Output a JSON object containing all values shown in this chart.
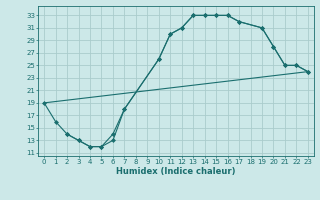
{
  "xlabel": "Humidex (Indice chaleur)",
  "bg_color": "#cce8e8",
  "grid_color": "#aacccc",
  "line_color": "#1a6e6e",
  "xlim": [
    -0.5,
    23.5
  ],
  "ylim": [
    10.5,
    34.5
  ],
  "xticks": [
    0,
    1,
    2,
    3,
    4,
    5,
    6,
    7,
    8,
    9,
    10,
    11,
    12,
    13,
    14,
    15,
    16,
    17,
    18,
    19,
    20,
    21,
    22,
    23
  ],
  "yticks": [
    11,
    13,
    15,
    17,
    19,
    21,
    23,
    25,
    27,
    29,
    31,
    33
  ],
  "line1_x": [
    0,
    1,
    2,
    3,
    4,
    5,
    6,
    7,
    10,
    11,
    12,
    13,
    14,
    15,
    16,
    17,
    19,
    20,
    21,
    22,
    23
  ],
  "line1_y": [
    19,
    16,
    14,
    13,
    12,
    12,
    13,
    18,
    26,
    30,
    31,
    33,
    33,
    33,
    33,
    32,
    31,
    28,
    25,
    25,
    24
  ],
  "line2_x": [
    2,
    3,
    4,
    5,
    6,
    7,
    10,
    11,
    12,
    13,
    14,
    15,
    16,
    17,
    19,
    20,
    21,
    22,
    23
  ],
  "line2_y": [
    14,
    13,
    12,
    12,
    14,
    18,
    26,
    30,
    31,
    33,
    33,
    33,
    33,
    32,
    31,
    28,
    25,
    25,
    24
  ],
  "line3_x": [
    0,
    23
  ],
  "line3_y": [
    19,
    24
  ]
}
